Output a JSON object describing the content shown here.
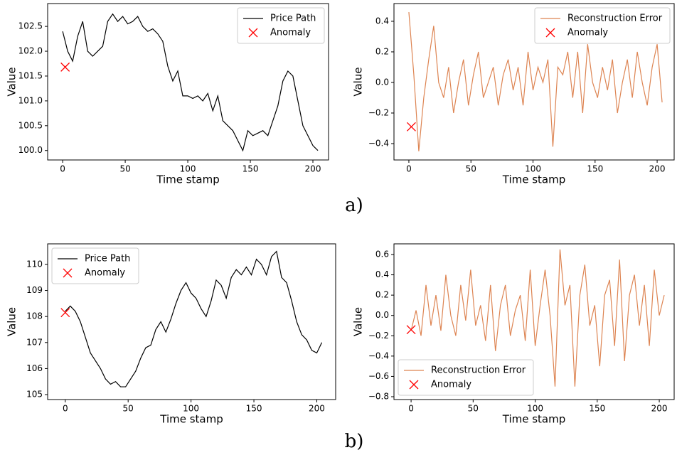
{
  "captions": [
    "a)",
    "b)"
  ],
  "chart_data": [
    {
      "type": "line",
      "xlabel": "Time stamp",
      "ylabel": "Value",
      "legend": "upper right",
      "xlim": [
        -12,
        212.5
      ],
      "ylim": [
        99.81,
        102.96
      ],
      "xticks": [
        0,
        50,
        100,
        150,
        200
      ],
      "yticks": [
        {
          "value": 100,
          "label": "100.0"
        },
        100.5,
        {
          "value": 101,
          "label": "101.0"
        },
        101.5,
        {
          "value": 102,
          "label": "102.0"
        },
        102.5
      ],
      "x": [
        0,
        4,
        8,
        12,
        16,
        20,
        24,
        28,
        32,
        36,
        40,
        44,
        48,
        52,
        56,
        60,
        64,
        68,
        72,
        76,
        80,
        84,
        88,
        92,
        96,
        100,
        104,
        108,
        112,
        116,
        120,
        124,
        128,
        132,
        136,
        140,
        144,
        148,
        152,
        156,
        160,
        164,
        168,
        172,
        176,
        180,
        184,
        188,
        192,
        196,
        200,
        204
      ],
      "series": [
        {
          "name": "Price Path",
          "color": "#000000",
          "values": [
            102.4,
            102.0,
            101.8,
            102.3,
            102.6,
            102.0,
            101.9,
            102.0,
            102.1,
            102.6,
            102.75,
            102.6,
            102.7,
            102.55,
            102.6,
            102.7,
            102.5,
            102.4,
            102.45,
            102.35,
            102.2,
            101.7,
            101.4,
            101.6,
            101.1,
            101.1,
            101.05,
            101.1,
            101.0,
            101.15,
            100.8,
            101.1,
            100.6,
            100.5,
            100.4,
            100.2,
            100.0,
            100.4,
            100.3,
            100.35,
            100.4,
            100.3,
            100.6,
            100.9,
            101.4,
            101.6,
            101.5,
            101.0,
            100.5,
            100.3,
            100.1,
            100.0
          ]
        },
        {
          "name": "Anomaly",
          "color": "#ff0000",
          "marker": "x",
          "x": [
            2
          ],
          "values": [
            101.68
          ]
        }
      ]
    },
    {
      "type": "line",
      "xlabel": "Time stamp",
      "ylabel": "Value",
      "legend": "upper right",
      "xlim": [
        -12,
        213.7
      ],
      "ylim": [
        -0.507,
        0.516
      ],
      "xticks": [
        0,
        50,
        100,
        150,
        200
      ],
      "yticks": [
        {
          "value": -0.4,
          "label": "−0.4"
        },
        {
          "value": -0.2,
          "label": "−0.2"
        },
        {
          "value": 0,
          "label": "0.0"
        },
        0.2,
        0.4
      ],
      "x": [
        0,
        4,
        8,
        12,
        16,
        20,
        24,
        28,
        32,
        36,
        40,
        44,
        48,
        52,
        56,
        60,
        64,
        68,
        72,
        76,
        80,
        84,
        88,
        92,
        96,
        100,
        104,
        108,
        112,
        116,
        120,
        124,
        128,
        132,
        136,
        140,
        144,
        148,
        152,
        156,
        160,
        164,
        168,
        172,
        176,
        180,
        184,
        188,
        192,
        196,
        200,
        204
      ],
      "series": [
        {
          "name": "Reconstruction Error",
          "color": "#dd8452",
          "values": [
            0.46,
            0.05,
            -0.45,
            -0.1,
            0.15,
            0.37,
            0.0,
            -0.1,
            0.1,
            -0.2,
            0.0,
            0.15,
            -0.15,
            0.05,
            0.2,
            -0.1,
            0.0,
            0.1,
            -0.15,
            0.05,
            0.15,
            -0.05,
            0.1,
            -0.15,
            0.2,
            -0.05,
            0.1,
            0.0,
            0.15,
            -0.42,
            0.1,
            0.05,
            0.2,
            -0.1,
            0.2,
            -0.2,
            0.25,
            0.0,
            -0.1,
            0.1,
            -0.05,
            0.15,
            -0.2,
            0.0,
            0.15,
            -0.1,
            0.2,
            0.0,
            -0.15,
            0.1,
            0.25,
            -0.13
          ]
        },
        {
          "name": "Anomaly",
          "color": "#ff0000",
          "marker": "x",
          "x": [
            2
          ],
          "values": [
            -0.29
          ]
        }
      ]
    },
    {
      "type": "line",
      "xlabel": "Time stamp",
      "ylabel": "Value",
      "legend": "upper left",
      "xlim": [
        -14,
        215
      ],
      "ylim": [
        104.81,
        110.79
      ],
      "xticks": [
        0,
        50,
        100,
        150,
        200
      ],
      "yticks": [
        105,
        106,
        107,
        108,
        109,
        110
      ],
      "x": [
        0,
        4,
        8,
        12,
        16,
        20,
        24,
        28,
        32,
        36,
        40,
        44,
        48,
        52,
        56,
        60,
        64,
        68,
        72,
        76,
        80,
        84,
        88,
        92,
        96,
        100,
        104,
        108,
        112,
        116,
        120,
        124,
        128,
        132,
        136,
        140,
        144,
        148,
        152,
        156,
        160,
        164,
        168,
        172,
        176,
        180,
        184,
        188,
        192,
        196,
        200,
        204
      ],
      "series": [
        {
          "name": "Price Path",
          "color": "#000000",
          "values": [
            108.2,
            108.4,
            108.2,
            107.8,
            107.2,
            106.6,
            106.3,
            106.0,
            105.6,
            105.4,
            105.5,
            105.3,
            105.3,
            105.6,
            105.9,
            106.4,
            106.8,
            106.9,
            107.5,
            107.8,
            107.4,
            107.9,
            108.5,
            109.0,
            109.3,
            108.9,
            108.7,
            108.3,
            108.0,
            108.6,
            109.4,
            109.2,
            108.7,
            109.5,
            109.8,
            109.6,
            109.9,
            109.6,
            110.2,
            110.0,
            109.6,
            110.3,
            110.5,
            109.5,
            109.3,
            108.6,
            107.8,
            107.3,
            107.1,
            106.7,
            106.6,
            107.0
          ]
        },
        {
          "name": "Anomaly",
          "color": "#ff0000",
          "marker": "x",
          "x": [
            0
          ],
          "values": [
            108.15
          ]
        }
      ]
    },
    {
      "type": "line",
      "xlabel": "Time stamp",
      "ylabel": "Value",
      "legend": "lower left",
      "xlim": [
        -13.8,
        212
      ],
      "ylim": [
        -0.828,
        0.705
      ],
      "xticks": [
        0,
        50,
        100,
        150,
        200
      ],
      "yticks": [
        {
          "value": -0.8,
          "label": "−0.8"
        },
        {
          "value": -0.6,
          "label": "−0.6"
        },
        {
          "value": -0.4,
          "label": "−0.4"
        },
        {
          "value": -0.2,
          "label": "−0.2"
        },
        {
          "value": 0,
          "label": "0.0"
        },
        0.2,
        0.4,
        0.6
      ],
      "x": [
        0,
        4,
        8,
        12,
        16,
        20,
        24,
        28,
        32,
        36,
        40,
        44,
        48,
        52,
        56,
        60,
        64,
        68,
        72,
        76,
        80,
        84,
        88,
        92,
        96,
        100,
        104,
        108,
        112,
        116,
        120,
        124,
        128,
        132,
        136,
        140,
        144,
        148,
        152,
        156,
        160,
        164,
        168,
        172,
        176,
        180,
        184,
        188,
        192,
        196,
        200,
        204
      ],
      "series": [
        {
          "name": "Reconstruction Error",
          "color": "#dd8452",
          "values": [
            -0.15,
            0.05,
            -0.2,
            0.3,
            -0.1,
            0.2,
            -0.15,
            0.4,
            0.0,
            -0.2,
            0.3,
            -0.05,
            0.45,
            -0.1,
            0.1,
            -0.25,
            0.3,
            -0.35,
            0.1,
            0.3,
            -0.2,
            0.05,
            0.2,
            -0.25,
            0.45,
            -0.3,
            0.1,
            0.45,
            0.0,
            -0.7,
            0.65,
            0.1,
            0.3,
            -0.7,
            0.2,
            0.5,
            -0.1,
            0.1,
            -0.5,
            0.2,
            0.35,
            -0.3,
            0.55,
            -0.45,
            0.2,
            0.4,
            -0.1,
            0.3,
            -0.3,
            0.45,
            0.0,
            0.2
          ]
        },
        {
          "name": "Anomaly",
          "color": "#ff0000",
          "marker": "x",
          "x": [
            0
          ],
          "values": [
            -0.14
          ]
        }
      ]
    }
  ]
}
